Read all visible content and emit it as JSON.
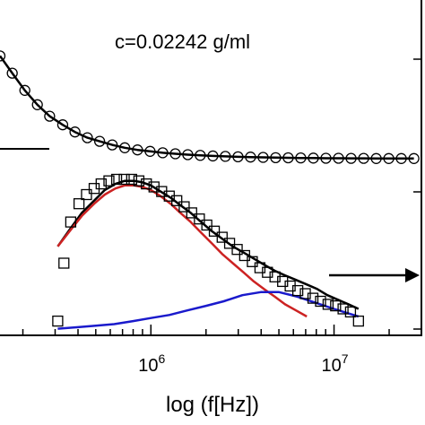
{
  "chart_data": {
    "type": "scatter",
    "annotation": "c=0.02242 g/ml",
    "xlabel": "log (f[Hz])",
    "x_scale": "log",
    "xlim": [
      150000,
      30000000
    ],
    "x_ticks": [
      {
        "value": 1000000,
        "base": "10",
        "exp": "6"
      },
      {
        "value": 10000000,
        "base": "10",
        "exp": "7"
      }
    ],
    "upper_panel": {
      "ylim": [
        0,
        1
      ],
      "series": [
        {
          "kind": "markers",
          "marker": "circle",
          "color": "#000000",
          "x": [
            150000,
            175000,
            205000,
            240000,
            280000,
            330000,
            385000,
            450000,
            525000,
            615000,
            720000,
            845000,
            990000,
            1160000,
            1360000,
            1590000,
            1860000,
            2180000,
            2550000,
            2990000,
            3500000,
            4100000,
            4800000,
            5620000,
            6580000,
            7710000,
            9030000,
            10580000,
            12390000,
            14510000,
            17000000,
            19900000,
            23300000,
            27300000
          ],
          "y": [
            0.86,
            0.74,
            0.62,
            0.52,
            0.44,
            0.38,
            0.33,
            0.29,
            0.265,
            0.24,
            0.22,
            0.205,
            0.195,
            0.185,
            0.178,
            0.172,
            0.167,
            0.163,
            0.16,
            0.157,
            0.155,
            0.153,
            0.151,
            0.15,
            0.149,
            0.148,
            0.147,
            0.147,
            0.146,
            0.146,
            0.145,
            0.145,
            0.145,
            0.145
          ]
        },
        {
          "kind": "line",
          "color": "#000000",
          "x": [
            150000,
            175000,
            205000,
            240000,
            280000,
            330000,
            385000,
            450000,
            525000,
            615000,
            720000,
            845000,
            990000,
            1160000,
            1360000,
            1590000,
            1860000,
            2180000,
            2550000,
            2990000,
            3500000,
            4100000,
            4800000,
            5620000,
            6580000,
            7710000,
            9030000,
            10580000,
            12390000,
            14510000,
            17000000,
            19900000,
            23300000,
            27300000
          ],
          "y": [
            0.86,
            0.74,
            0.62,
            0.52,
            0.44,
            0.38,
            0.33,
            0.29,
            0.265,
            0.24,
            0.22,
            0.205,
            0.195,
            0.185,
            0.178,
            0.172,
            0.167,
            0.163,
            0.16,
            0.157,
            0.155,
            0.153,
            0.151,
            0.15,
            0.149,
            0.148,
            0.147,
            0.147,
            0.146,
            0.146,
            0.145,
            0.145,
            0.145,
            0.145
          ]
        }
      ]
    },
    "lower_panel": {
      "ylim": [
        0,
        1
      ],
      "series": [
        {
          "kind": "markers",
          "marker": "square",
          "color": "#000000",
          "x": [
            310000,
            335000,
            365000,
            405000,
            445000,
            490000,
            535000,
            590000,
            650000,
            715000,
            785000,
            860000,
            945000,
            1040000,
            1145000,
            1260000,
            1385000,
            1520000,
            1670000,
            1840000,
            2020000,
            2220000,
            2450000,
            2690000,
            2960000,
            3250000,
            3580000,
            3940000,
            4330000,
            4760000,
            5240000,
            5760000,
            6340000,
            6970000,
            7670000,
            8440000,
            9280000,
            10200000,
            11200000,
            12300000,
            13600000
          ],
          "y": [
            0.07,
            0.45,
            0.72,
            0.84,
            0.9,
            0.94,
            0.97,
            0.99,
            1.0,
            1.0,
            1.0,
            0.99,
            0.97,
            0.95,
            0.92,
            0.89,
            0.86,
            0.82,
            0.78,
            0.74,
            0.7,
            0.66,
            0.62,
            0.58,
            0.54,
            0.5,
            0.46,
            0.42,
            0.39,
            0.36,
            0.33,
            0.3,
            0.27,
            0.25,
            0.22,
            0.2,
            0.18,
            0.17,
            0.15,
            0.13,
            0.07
          ]
        },
        {
          "kind": "line",
          "color": "#000000",
          "x": [
            310000,
            360000,
            420000,
            490000,
            560000,
            640000,
            720000,
            810000,
            900000,
            1000000,
            1130000,
            1280000,
            1450000,
            1650000,
            1880000,
            2150000,
            2450000,
            2800000,
            3200000,
            3650000,
            4150000,
            4750000,
            5400000,
            6200000,
            7100000,
            8100000,
            9200000,
            10500000,
            12000000,
            13600000
          ],
          "y": [
            0.56,
            0.67,
            0.78,
            0.86,
            0.93,
            0.97,
            0.99,
            0.99,
            0.98,
            0.96,
            0.92,
            0.88,
            0.83,
            0.78,
            0.72,
            0.66,
            0.61,
            0.56,
            0.52,
            0.48,
            0.44,
            0.4,
            0.37,
            0.34,
            0.31,
            0.28,
            0.24,
            0.21,
            0.18,
            0.15
          ]
        },
        {
          "kind": "line",
          "color": "#cc2222",
          "x": [
            310000,
            360000,
            420000,
            490000,
            560000,
            640000,
            720000,
            810000,
            900000,
            1000000,
            1130000,
            1280000,
            1450000,
            1650000,
            1880000,
            2150000,
            2450000,
            2800000,
            3200000,
            3650000,
            4150000,
            4750000,
            5400000,
            6200000,
            7100000
          ],
          "y": [
            0.56,
            0.66,
            0.76,
            0.84,
            0.9,
            0.94,
            0.96,
            0.96,
            0.95,
            0.93,
            0.89,
            0.84,
            0.78,
            0.72,
            0.65,
            0.58,
            0.51,
            0.45,
            0.39,
            0.33,
            0.28,
            0.23,
            0.18,
            0.14,
            0.1
          ]
        },
        {
          "kind": "line",
          "color": "#1a1acc",
          "x": [
            310000,
            400000,
            500000,
            630000,
            800000,
            1000000,
            1260000,
            1580000,
            2000000,
            2500000,
            3160000,
            3980000,
            5010000,
            6310000,
            7940000,
            10000000,
            12000000,
            13600000
          ],
          "y": [
            0.02,
            0.03,
            0.04,
            0.05,
            0.07,
            0.09,
            0.11,
            0.14,
            0.17,
            0.2,
            0.24,
            0.26,
            0.26,
            0.23,
            0.19,
            0.15,
            0.12,
            0.1
          ]
        }
      ]
    }
  }
}
